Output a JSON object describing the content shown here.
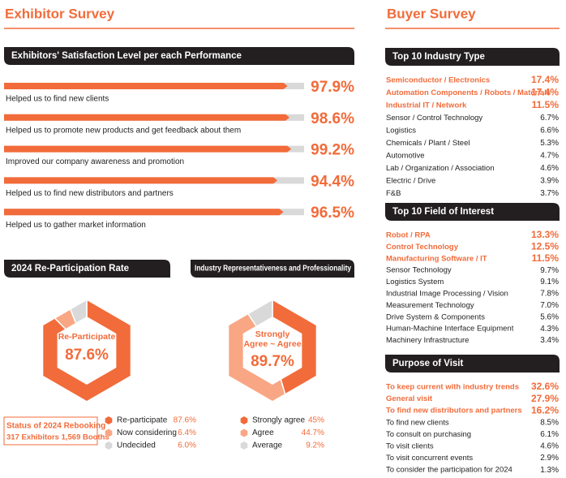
{
  "exhibitor": {
    "title": "Exhibitor Survey",
    "satisfaction": {
      "title": "Exhibitors' Satisfaction Level per each Performance",
      "items": [
        {
          "label": "Helped us to find new clients",
          "value": 97.9,
          "value_label": "97.9%"
        },
        {
          "label": "Helped us to promote new products and get feedback about them",
          "value": 98.6,
          "value_label": "98.6%"
        },
        {
          "label": "Improved our company awareness and promotion",
          "value": 99.2,
          "value_label": "99.2%"
        },
        {
          "label": "Helped us to find new distributors and partners",
          "value": 94.4,
          "value_label": "94.4%"
        },
        {
          "label": "Helped us to gather market information",
          "value": 96.5,
          "value_label": "96.5%"
        }
      ]
    },
    "reparticipation": {
      "title": "2024 Re-Participation Rate",
      "center_label": "Re-Participate",
      "segments": [
        {
          "name": "Re-participate",
          "value": 87.6,
          "value_label": "87.6%",
          "color": "#f26b3a"
        },
        {
          "name": "Now considering",
          "value": 6.4,
          "value_label": "6.4%",
          "color": "#f9a684"
        },
        {
          "name": "Undecided",
          "value": 6.0,
          "value_label": "6.0%",
          "color": "#d9d9d9"
        }
      ]
    },
    "rebooking": {
      "title": "Status of 2024 Rebooking",
      "detail": "317 Exhibitors 1,569 Booths"
    },
    "industry": {
      "title": "Industry Representativeness and Professionality",
      "center_label": "Strongly Agree ~ Agree",
      "center_value": "89.7%",
      "segments": [
        {
          "name": "Strongly agree",
          "value": 45,
          "value_label": "45%",
          "color": "#f26b3a"
        },
        {
          "name": "Agree",
          "value": 44.7,
          "value_label": "44.7%",
          "color": "#f9a684"
        },
        {
          "name": "Average",
          "value": 9.2,
          "value_label": "9.2%",
          "color": "#d9d9d9"
        }
      ]
    }
  },
  "buyer": {
    "title": "Buyer Survey",
    "highlight_top": 3,
    "lists": [
      {
        "title": "Top 10 Industry Type",
        "items": [
          {
            "name": "Semiconductor / Electronics",
            "value": "17.4%"
          },
          {
            "name": "Automation Components / Robots / Materials",
            "value": "17.4%"
          },
          {
            "name": "Industrial IT / Network",
            "value": "11.5%"
          },
          {
            "name": "Sensor / Control Technology",
            "value": "6.7%"
          },
          {
            "name": "Logistics",
            "value": "6.6%"
          },
          {
            "name": "Chemicals / Plant / Steel",
            "value": "5.3%"
          },
          {
            "name": "Automotive",
            "value": "4.7%"
          },
          {
            "name": "Lab / Organization / Association",
            "value": "4.6%"
          },
          {
            "name": "Electric / Drive",
            "value": "3.9%"
          },
          {
            "name": "F&B",
            "value": "3.7%"
          }
        ]
      },
      {
        "title": "Top 10 Field of Interest",
        "items": [
          {
            "name": "Robot / RPA",
            "value": "13.3%"
          },
          {
            "name": "Control Technology",
            "value": "12.5%"
          },
          {
            "name": "Manufacturing Software / IT",
            "value": "11.5%"
          },
          {
            "name": "Sensor Technology",
            "value": "9.7%"
          },
          {
            "name": "Logistics System",
            "value": "9.1%"
          },
          {
            "name": "Industrial Image Processing / Vision",
            "value": "7.8%"
          },
          {
            "name": "Measurement Technology",
            "value": "7.0%"
          },
          {
            "name": "Drive System & Components",
            "value": "5.6%"
          },
          {
            "name": "Human-Machine Interface Equipment",
            "value": "4.3%"
          },
          {
            "name": "Machinery Infrastructure",
            "value": "3.4%"
          }
        ]
      },
      {
        "title": "Purpose of Visit",
        "items": [
          {
            "name": "To keep current with industry trends",
            "value": "32.6%"
          },
          {
            "name": "General visit",
            "value": "27.9%"
          },
          {
            "name": "To find new distributors and partners",
            "value": "16.2%"
          },
          {
            "name": "To find new clients",
            "value": "8.5%"
          },
          {
            "name": "To consult on purchasing",
            "value": "6.1%"
          },
          {
            "name": "To visit clients",
            "value": "4.6%"
          },
          {
            "name": "To visit concurrent events",
            "value": "2.9%"
          },
          {
            "name": "To consider the participation for 2024",
            "value": "1.3%"
          }
        ]
      }
    ]
  }
}
